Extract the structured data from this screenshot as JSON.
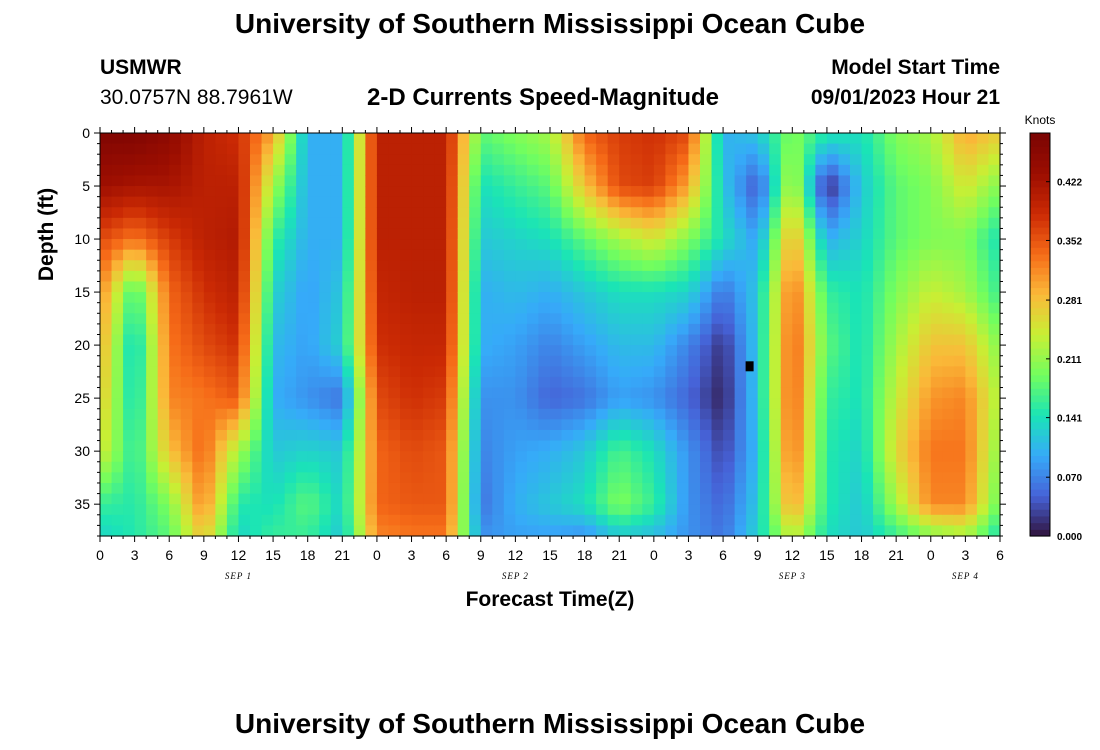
{
  "header": {
    "title": "University of Southern Mississippi Ocean Cube",
    "station": "USMWR",
    "coords": "30.0757N  88.7961W",
    "subtitle": "2-D Currents Speed-Magnitude",
    "model_start_label": "Model Start Time",
    "model_start_value": "09/01/2023 Hour 21"
  },
  "footer": {
    "title": "University of Southern Mississippi Ocean Cube"
  },
  "chart_data": {
    "type": "heatmap",
    "title": "2-D Currents Speed-Magnitude",
    "xlabel": "Forecast Time(Z)",
    "ylabel": "Depth (ft)",
    "x_range_hours": [
      0,
      78
    ],
    "ylim": [
      0,
      38
    ],
    "y_inverted": true,
    "x_tick_labels": [
      "0",
      "3",
      "6",
      "9",
      "12",
      "15",
      "18",
      "21",
      "0",
      "3",
      "6",
      "9",
      "12",
      "15",
      "18",
      "21",
      "0",
      "3",
      "6",
      "9",
      "12",
      "15",
      "18",
      "21",
      "0",
      "3",
      "6"
    ],
    "y_ticks": [
      0,
      5,
      10,
      15,
      20,
      25,
      30,
      35
    ],
    "date_labels": [
      {
        "label": "SEP 1",
        "hour": 12
      },
      {
        "label": "SEP 2",
        "hour": 36
      },
      {
        "label": "SEP 3",
        "hour": 60
      },
      {
        "label": "SEP 4",
        "hour": 75
      }
    ],
    "colorbar": {
      "label": "Knots",
      "ticks": [
        "0.000",
        "0.070",
        "0.141",
        "0.211",
        "0.281",
        "0.352",
        "0.422"
      ],
      "min": 0.0,
      "max": 0.48
    },
    "marker": {
      "hour": 56.3,
      "depth": 22
    },
    "speed_knots_by_column": {
      "note_units": "knots",
      "x_hours": [
        0,
        3,
        6,
        9,
        12,
        15,
        18,
        21,
        24,
        27,
        30,
        33,
        36,
        39,
        42,
        45,
        48,
        51,
        54,
        57,
        60,
        63,
        66,
        69,
        72,
        75,
        78
      ],
      "depths_ft": [
        0,
        5,
        10,
        15,
        20,
        25,
        30,
        35,
        38
      ],
      "values": [
        [
          0.47,
          0.43,
          0.36,
          0.32,
          0.3,
          0.28,
          0.25,
          0.16,
          0.13
        ],
        [
          0.47,
          0.42,
          0.33,
          0.16,
          0.12,
          0.13,
          0.15,
          0.15,
          0.15
        ],
        [
          0.45,
          0.42,
          0.37,
          0.34,
          0.33,
          0.32,
          0.28,
          0.2,
          0.18
        ],
        [
          0.4,
          0.4,
          0.4,
          0.38,
          0.36,
          0.33,
          0.34,
          0.32,
          0.28
        ],
        [
          0.38,
          0.4,
          0.41,
          0.4,
          0.38,
          0.35,
          0.22,
          0.15,
          0.13
        ],
        [
          0.3,
          0.22,
          0.16,
          0.13,
          0.11,
          0.1,
          0.12,
          0.14,
          0.16
        ],
        [
          0.1,
          0.1,
          0.1,
          0.09,
          0.09,
          0.08,
          0.13,
          0.18,
          0.16
        ],
        [
          0.1,
          0.1,
          0.1,
          0.12,
          0.13,
          0.06,
          0.12,
          0.13,
          0.12
        ],
        [
          0.4,
          0.4,
          0.4,
          0.39,
          0.38,
          0.36,
          0.34,
          0.34,
          0.32
        ],
        [
          0.4,
          0.4,
          0.4,
          0.4,
          0.39,
          0.38,
          0.36,
          0.35,
          0.33
        ],
        [
          0.4,
          0.4,
          0.4,
          0.4,
          0.39,
          0.37,
          0.35,
          0.35,
          0.33
        ],
        [
          0.18,
          0.14,
          0.12,
          0.1,
          0.1,
          0.08,
          0.07,
          0.06,
          0.08
        ],
        [
          0.2,
          0.16,
          0.13,
          0.11,
          0.09,
          0.08,
          0.09,
          0.1,
          0.09
        ],
        [
          0.22,
          0.18,
          0.14,
          0.1,
          0.07,
          0.05,
          0.1,
          0.12,
          0.09
        ],
        [
          0.34,
          0.28,
          0.18,
          0.12,
          0.09,
          0.06,
          0.12,
          0.14,
          0.08
        ],
        [
          0.37,
          0.36,
          0.22,
          0.14,
          0.11,
          0.09,
          0.17,
          0.2,
          0.12
        ],
        [
          0.38,
          0.37,
          0.25,
          0.14,
          0.11,
          0.08,
          0.14,
          0.16,
          0.11
        ],
        [
          0.36,
          0.3,
          0.2,
          0.13,
          0.07,
          0.05,
          0.08,
          0.08,
          0.08
        ],
        [
          0.1,
          0.12,
          0.14,
          0.06,
          0.02,
          0.01,
          0.03,
          0.05,
          0.06
        ],
        [
          0.12,
          0.04,
          0.09,
          0.12,
          0.12,
          0.12,
          0.11,
          0.12,
          0.13
        ],
        [
          0.2,
          0.24,
          0.3,
          0.34,
          0.35,
          0.35,
          0.34,
          0.31,
          0.24
        ],
        [
          0.15,
          0.01,
          0.1,
          0.16,
          0.18,
          0.16,
          0.15,
          0.15,
          0.14
        ],
        [
          0.14,
          0.12,
          0.13,
          0.14,
          0.14,
          0.14,
          0.13,
          0.12,
          0.12
        ],
        [
          0.2,
          0.18,
          0.18,
          0.2,
          0.22,
          0.24,
          0.26,
          0.22,
          0.16
        ],
        [
          0.22,
          0.2,
          0.2,
          0.24,
          0.28,
          0.31,
          0.33,
          0.32,
          0.2
        ],
        [
          0.3,
          0.25,
          0.2,
          0.22,
          0.28,
          0.32,
          0.33,
          0.32,
          0.22
        ],
        [
          0.27,
          0.2,
          0.14,
          0.16,
          0.2,
          0.22,
          0.2,
          0.18,
          0.14
        ]
      ]
    }
  }
}
